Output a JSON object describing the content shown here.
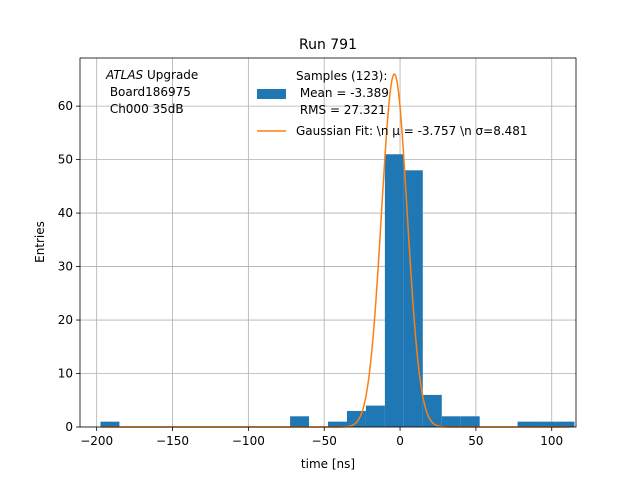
{
  "chart_data": {
    "type": "bar",
    "title": "Run 791",
    "xlabel": "time [ns]",
    "ylabel": "Entries",
    "xlim": [
      -211,
      116
    ],
    "ylim": [
      0,
      69
    ],
    "xticks": [
      -200,
      -150,
      -100,
      -50,
      0,
      50,
      100
    ],
    "xtick_labels": [
      "−200",
      "−150",
      "−100",
      "−50",
      "0",
      "50",
      "100"
    ],
    "yticks": [
      0,
      10,
      20,
      30,
      40,
      50,
      60
    ],
    "ytick_labels": [
      "0",
      "10",
      "20",
      "30",
      "40",
      "50",
      "60"
    ],
    "grid": true,
    "histogram": {
      "name": "Samples (123):\n Mean = -3.389\n RMS = 27.321",
      "color": "#1f77b4",
      "bin_edges": [
        -197.5,
        -185,
        -172.5,
        -160,
        -147.5,
        -135,
        -122.5,
        -110,
        -97.5,
        -85,
        -72.5,
        -60,
        -47.5,
        -35,
        -22.5,
        -10,
        2.5,
        15,
        27.5,
        40,
        52.5,
        65,
        77.5,
        90,
        102.5,
        115
      ],
      "counts": [
        1,
        0,
        0,
        0,
        0,
        0,
        0,
        0,
        0,
        0,
        2,
        0,
        1,
        3,
        4,
        51,
        48,
        6,
        2,
        2,
        0,
        0,
        1,
        1,
        1
      ]
    },
    "fit": {
      "name": "Gaussian Fit: \\n μ = -3.757 \\n σ=8.481",
      "color": "#ff7f0e",
      "mu": -3.757,
      "sigma": 8.481,
      "amplitude": 66,
      "x_range": [
        -197.5,
        112
      ]
    },
    "legend": {
      "placement": "top-right",
      "samples_lines": [
        "Samples (123):",
        " Mean = -3.389",
        " RMS = 27.321"
      ],
      "fit_label": "Gaussian Fit: \\n μ = -3.757 \\n σ=8.481"
    },
    "annotation": {
      "placement": "top-left",
      "atlas_word": "ATLAS",
      "atlas_rest": " Upgrade",
      "lines": [
        " Board186975",
        " Ch000 35dB"
      ]
    }
  }
}
